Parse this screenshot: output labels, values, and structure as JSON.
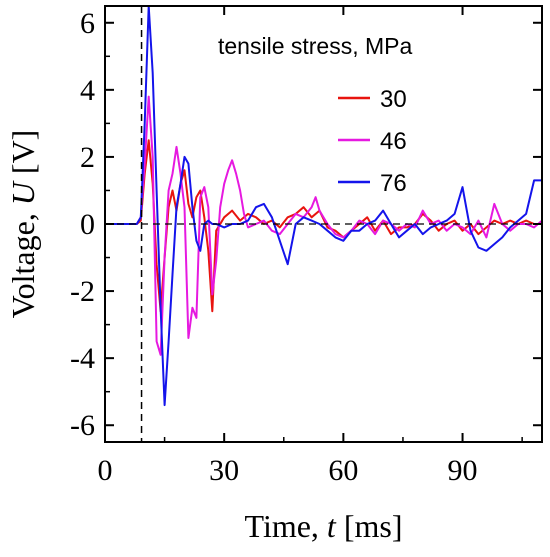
{
  "chart_data": {
    "type": "line",
    "title": "",
    "xlabel_parts": [
      "Time, ",
      "t",
      " [ms]"
    ],
    "ylabel_parts": [
      "Voltage,  ",
      "U",
      " [V]"
    ],
    "xlim": [
      0,
      110
    ],
    "ylim": [
      -6.5,
      6.5
    ],
    "xticks": [
      0,
      30,
      60,
      90
    ],
    "yticks": [
      6,
      4,
      2,
      0,
      -2,
      -4,
      -6
    ],
    "xtick_labels": [
      "0",
      "30",
      "60",
      "90"
    ],
    "ytick_labels": [
      "6",
      "4",
      "2",
      "0",
      "-2",
      "-4",
      "-6"
    ],
    "grid": false,
    "zero_line": 0,
    "trigger_line_x": 9.2,
    "legend": {
      "title": "tensile stress, MPa",
      "placement": "top-right"
    },
    "series": [
      {
        "name": "30",
        "color": "#e8140f",
        "x": [
          0,
          8,
          9,
          10,
          11,
          12,
          13,
          14,
          15,
          16,
          17,
          18,
          19,
          20,
          21,
          22,
          23,
          24,
          25,
          26,
          27,
          28,
          30,
          32,
          34,
          36,
          38,
          40,
          42,
          44,
          46,
          48,
          50,
          52,
          54,
          56,
          58,
          60,
          62,
          64,
          66,
          68,
          70,
          72,
          74,
          76,
          78,
          80,
          82,
          84,
          86,
          88,
          90,
          92,
          94,
          96,
          98,
          100,
          102,
          104,
          106,
          108,
          110
        ],
        "y": [
          0,
          0,
          0.1,
          1.5,
          2.5,
          1.2,
          -1.2,
          -2.6,
          -1.0,
          0.5,
          1.0,
          0.4,
          1.2,
          1.6,
          0.6,
          0.2,
          0.8,
          1.0,
          0.2,
          -0.8,
          -2.6,
          -0.2,
          0.2,
          0.4,
          0.1,
          0.3,
          0.2,
          0.0,
          0.1,
          -0.1,
          0.2,
          0.3,
          0.5,
          0.2,
          0.4,
          -0.1,
          -0.2,
          -0.4,
          -0.2,
          0.0,
          0.2,
          -0.2,
          0.1,
          -0.3,
          -0.1,
          -0.1,
          0.0,
          0.3,
          0.1,
          -0.2,
          0.0,
          0.1,
          -0.2,
          0.0,
          -0.3,
          -0.1,
          0.1,
          0.0,
          0.1,
          0.0,
          0.1,
          0.0,
          0.0
        ]
      },
      {
        "name": "46",
        "color": "#e619e0",
        "x": [
          0,
          8,
          9,
          10,
          11,
          12,
          13,
          14,
          15,
          16,
          17,
          18,
          19,
          20,
          21,
          22,
          23,
          24,
          25,
          26,
          27,
          28,
          29,
          30,
          31,
          32,
          33,
          34,
          35,
          36,
          38,
          40,
          42,
          44,
          46,
          48,
          50,
          52,
          53,
          54,
          56,
          58,
          60,
          62,
          64,
          66,
          68,
          70,
          72,
          74,
          76,
          78,
          80,
          82,
          84,
          86,
          88,
          90,
          92,
          94,
          96,
          98,
          100,
          102,
          104,
          106,
          108,
          110
        ],
        "y": [
          0,
          0,
          0.2,
          1.8,
          3.8,
          2.0,
          -3.5,
          -3.9,
          -1.0,
          1.0,
          1.5,
          2.3,
          1.5,
          0.5,
          -3.4,
          -2.5,
          -2.8,
          0.8,
          1.1,
          0.5,
          -2.1,
          -1.1,
          0.5,
          1.2,
          1.6,
          1.9,
          1.5,
          1.0,
          0.3,
          -0.1,
          0.0,
          0.1,
          -0.2,
          -0.3,
          0.0,
          0.3,
          0.2,
          0.5,
          0.8,
          0.4,
          0.0,
          -0.3,
          -0.4,
          -0.2,
          0.1,
          0.0,
          -0.3,
          0.1,
          0.0,
          -0.2,
          0.0,
          -0.1,
          0.4,
          0.0,
          0.1,
          -0.2,
          0.0,
          -0.1,
          -0.3,
          0.1,
          -0.4,
          0.6,
          0.0,
          -0.2,
          0.0,
          0.0,
          -0.1,
          0.1
        ]
      },
      {
        "name": "76",
        "color": "#1414eb",
        "x": [
          0,
          8,
          9,
          10,
          11,
          12,
          13,
          14,
          15,
          16,
          17,
          18,
          19,
          20,
          21,
          22,
          23,
          24,
          25,
          26,
          27,
          28,
          30,
          32,
          34,
          36,
          38,
          40,
          42,
          44,
          46,
          48,
          50,
          52,
          54,
          56,
          58,
          60,
          62,
          64,
          66,
          68,
          70,
          72,
          74,
          76,
          78,
          80,
          82,
          84,
          86,
          88,
          90,
          92,
          94,
          96,
          98,
          100,
          102,
          104,
          106,
          108,
          110
        ],
        "y": [
          0,
          0,
          0.2,
          3.0,
          6.5,
          4.5,
          1.0,
          -2.5,
          -5.4,
          -3.5,
          -1.5,
          0.5,
          1.2,
          2.0,
          1.8,
          0.5,
          -0.5,
          -0.8,
          0.0,
          0.1,
          0.0,
          0.0,
          -0.1,
          0.0,
          0.0,
          0.1,
          0.5,
          0.6,
          0.2,
          -0.5,
          -1.2,
          0.0,
          0.2,
          0.1,
          0.0,
          -0.2,
          -0.4,
          -0.5,
          -0.2,
          -0.2,
          0.0,
          0.1,
          0.4,
          0.0,
          -0.4,
          -0.2,
          0.0,
          -0.3,
          -0.1,
          0.0,
          0.1,
          0.3,
          1.1,
          -0.2,
          -0.7,
          -0.8,
          -0.6,
          -0.4,
          -0.1,
          0.1,
          0.3,
          1.3,
          1.3
        ]
      }
    ]
  }
}
